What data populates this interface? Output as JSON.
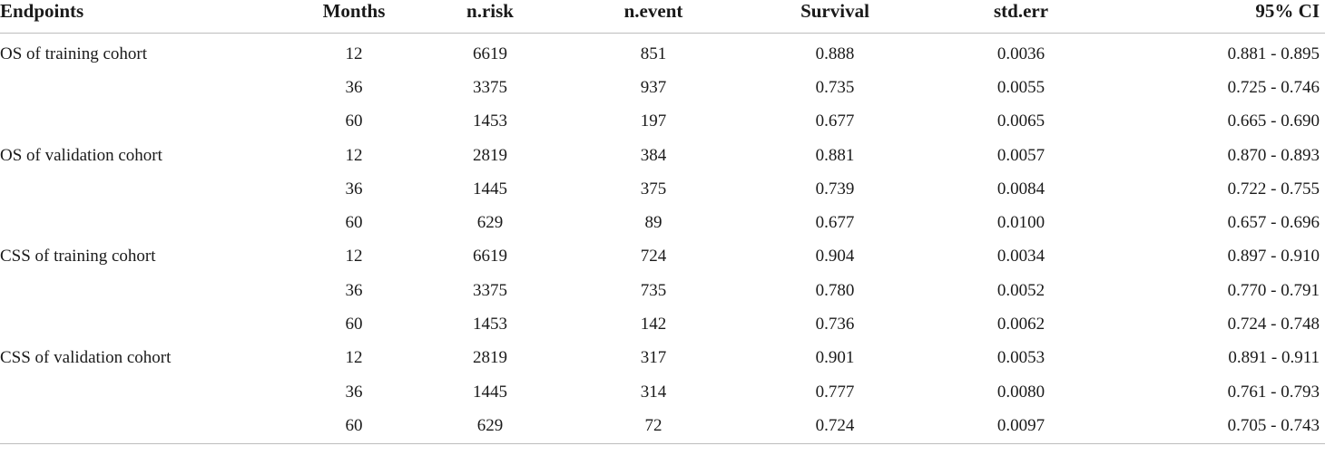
{
  "table": {
    "headers": [
      "Endpoints",
      "Months",
      "n.risk",
      "n.event",
      "Survival",
      "std.err",
      "95% CI"
    ],
    "rows": [
      {
        "endpoint": "OS of training cohort",
        "months": "12",
        "n_risk": "6619",
        "n_event": "851",
        "survival": "0.888",
        "std_err": "0.0036",
        "ci": "0.881 - 0.895"
      },
      {
        "endpoint": "",
        "months": "36",
        "n_risk": "3375",
        "n_event": "937",
        "survival": "0.735",
        "std_err": "0.0055",
        "ci": "0.725 - 0.746"
      },
      {
        "endpoint": "",
        "months": "60",
        "n_risk": "1453",
        "n_event": "197",
        "survival": "0.677",
        "std_err": "0.0065",
        "ci": "0.665 - 0.690"
      },
      {
        "endpoint": "OS of validation cohort",
        "months": "12",
        "n_risk": "2819",
        "n_event": "384",
        "survival": "0.881",
        "std_err": "0.0057",
        "ci": "0.870 - 0.893"
      },
      {
        "endpoint": "",
        "months": "36",
        "n_risk": "1445",
        "n_event": "375",
        "survival": "0.739",
        "std_err": "0.0084",
        "ci": "0.722 - 0.755"
      },
      {
        "endpoint": "",
        "months": "60",
        "n_risk": "629",
        "n_event": "89",
        "survival": "0.677",
        "std_err": "0.0100",
        "ci": "0.657 - 0.696"
      },
      {
        "endpoint": "CSS of training cohort",
        "months": "12",
        "n_risk": "6619",
        "n_event": "724",
        "survival": "0.904",
        "std_err": "0.0034",
        "ci": "0.897 - 0.910"
      },
      {
        "endpoint": "",
        "months": "36",
        "n_risk": "3375",
        "n_event": "735",
        "survival": "0.780",
        "std_err": "0.0052",
        "ci": "0.770 - 0.791"
      },
      {
        "endpoint": "",
        "months": "60",
        "n_risk": "1453",
        "n_event": "142",
        "survival": "0.736",
        "std_err": "0.0062",
        "ci": "0.724 - 0.748"
      },
      {
        "endpoint": "CSS of validation cohort",
        "months": "12",
        "n_risk": "2819",
        "n_event": "317",
        "survival": "0.901",
        "std_err": "0.0053",
        "ci": "0.891 - 0.911"
      },
      {
        "endpoint": "",
        "months": "36",
        "n_risk": "1445",
        "n_event": "314",
        "survival": "0.777",
        "std_err": "0.0080",
        "ci": "0.761 - 0.793"
      },
      {
        "endpoint": "",
        "months": "60",
        "n_risk": "629",
        "n_event": "72",
        "survival": "0.724",
        "std_err": "0.0097",
        "ci": "0.705 - 0.743"
      }
    ]
  }
}
